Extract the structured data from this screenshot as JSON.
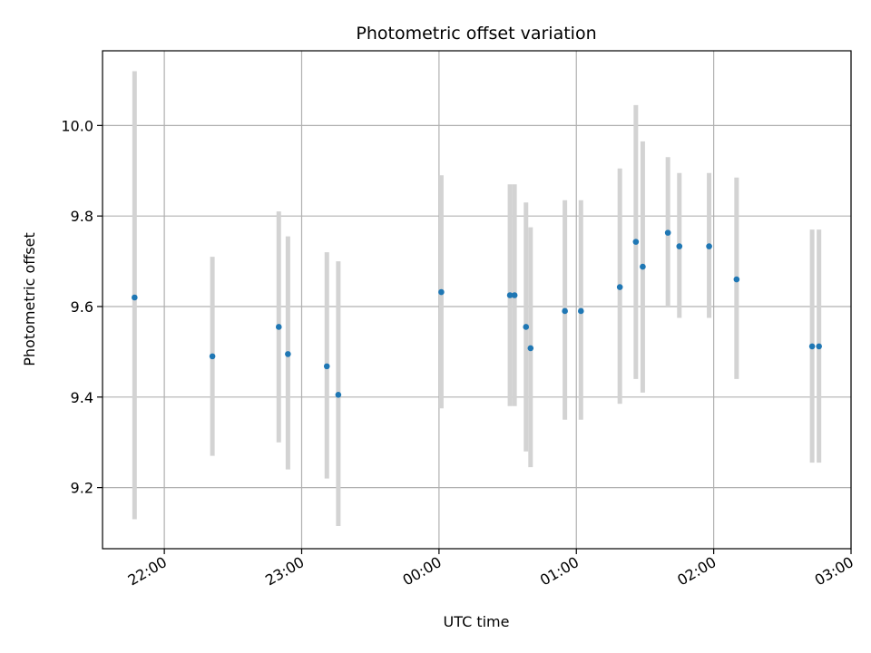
{
  "chart_data": {
    "type": "scatter",
    "title": "Photometric offset variation",
    "xlabel": "UTC time",
    "ylabel": "Photometric offset",
    "x_axis_kind": "time",
    "x_range": [
      "21:33",
      "03:00"
    ],
    "ylim": [
      9.065,
      10.165
    ],
    "grid": true,
    "x_ticks": [
      "22:00",
      "23:00",
      "00:00",
      "01:00",
      "02:00",
      "03:00"
    ],
    "y_ticks": [
      "9.2",
      "9.4",
      "9.6",
      "9.8",
      "10.0"
    ],
    "y_tick_values": [
      9.2,
      9.4,
      9.6,
      9.8,
      10.0
    ],
    "colors": {
      "point": "#1f77b4",
      "errorbar": "#d3d3d3",
      "grid": "#b0b0b0"
    },
    "series": [
      {
        "points": [
          {
            "x": "21:47",
            "y": 9.62,
            "ylow": 9.13,
            "yhigh": 10.12
          },
          {
            "x": "22:21",
            "y": 9.49,
            "ylow": 9.27,
            "yhigh": 9.71
          },
          {
            "x": "22:50",
            "y": 9.555,
            "ylow": 9.3,
            "yhigh": 9.81
          },
          {
            "x": "22:54",
            "y": 9.495,
            "ylow": 9.24,
            "yhigh": 9.755
          },
          {
            "x": "23:11",
            "y": 9.468,
            "ylow": 9.22,
            "yhigh": 9.72
          },
          {
            "x": "23:16",
            "y": 9.405,
            "ylow": 9.115,
            "yhigh": 9.7
          },
          {
            "x": "00:01",
            "y": 9.632,
            "ylow": 9.375,
            "yhigh": 9.89
          },
          {
            "x": "00:31",
            "y": 9.625,
            "ylow": 9.38,
            "yhigh": 9.87
          },
          {
            "x": "00:33",
            "y": 9.625,
            "ylow": 9.38,
            "yhigh": 9.87
          },
          {
            "x": "00:38",
            "y": 9.555,
            "ylow": 9.28,
            "yhigh": 9.83
          },
          {
            "x": "00:40",
            "y": 9.508,
            "ylow": 9.245,
            "yhigh": 9.775
          },
          {
            "x": "00:55",
            "y": 9.59,
            "ylow": 9.35,
            "yhigh": 9.835
          },
          {
            "x": "01:02",
            "y": 9.59,
            "ylow": 9.35,
            "yhigh": 9.835
          },
          {
            "x": "01:19",
            "y": 9.643,
            "ylow": 9.385,
            "yhigh": 9.905
          },
          {
            "x": "01:26",
            "y": 9.743,
            "ylow": 9.44,
            "yhigh": 10.045
          },
          {
            "x": "01:29",
            "y": 9.688,
            "ylow": 9.41,
            "yhigh": 9.965
          },
          {
            "x": "01:40",
            "y": 9.763,
            "ylow": 9.6,
            "yhigh": 9.93
          },
          {
            "x": "01:45",
            "y": 9.733,
            "ylow": 9.575,
            "yhigh": 9.895
          },
          {
            "x": "01:58",
            "y": 9.733,
            "ylow": 9.575,
            "yhigh": 9.895
          },
          {
            "x": "02:10",
            "y": 9.66,
            "ylow": 9.44,
            "yhigh": 9.885
          },
          {
            "x": "02:43",
            "y": 9.512,
            "ylow": 9.255,
            "yhigh": 9.77
          },
          {
            "x": "02:46",
            "y": 9.512,
            "ylow": 9.255,
            "yhigh": 9.77
          }
        ]
      }
    ]
  }
}
